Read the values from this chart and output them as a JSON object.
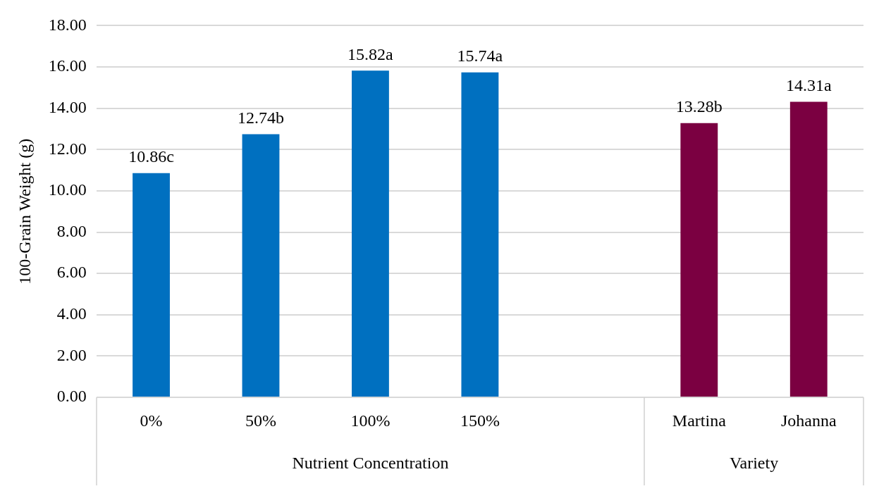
{
  "chart_data": {
    "type": "bar",
    "ylabel": "100-Grain Weight (g)",
    "categories": [
      "0%",
      "50%",
      "100%",
      "150%",
      null,
      "Martina",
      "Johanna"
    ],
    "values": [
      10.86,
      12.74,
      15.82,
      15.74,
      null,
      13.28,
      14.31
    ],
    "colors": [
      "#0070c0",
      "#0070c0",
      "#0070c0",
      "#0070c0",
      "#0070c0",
      "#7b0041",
      "#7b0041"
    ],
    "value_labels": [
      "10.86c",
      "12.74b",
      "15.82a",
      "15.74a",
      null,
      "13.28b",
      "14.31a"
    ],
    "ylim": [
      0,
      18
    ],
    "yticks": [
      {
        "value": 0,
        "label": "0.00"
      },
      {
        "value": 2,
        "label": "2.00"
      },
      {
        "value": 4,
        "label": "4.00"
      },
      {
        "value": 6,
        "label": "6.00"
      },
      {
        "value": 8,
        "label": "8.00"
      },
      {
        "value": 10,
        "label": "10.00"
      },
      {
        "value": 12,
        "label": "12.00"
      },
      {
        "value": 14,
        "label": "14.00"
      },
      {
        "value": 16,
        "label": "16.00"
      },
      {
        "value": 18,
        "label": "18.00"
      }
    ],
    "grid": "y",
    "annotations": [
      "Nutrient Concentration",
      "Variety"
    ]
  }
}
